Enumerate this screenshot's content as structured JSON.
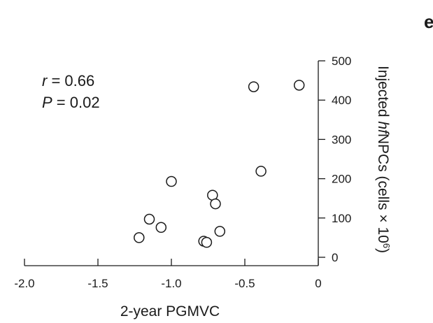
{
  "panel_letter": "e",
  "stats": {
    "r_label": "r",
    "r_value": " = 0.66",
    "p_label": "P",
    "p_value": " = 0.02"
  },
  "chart_data": {
    "type": "scatter",
    "xlabel": "2-year PGMVC",
    "ylabel_parts": [
      "Injected ",
      "hf",
      "NPCs (cells × 10",
      "6",
      ")"
    ],
    "xlim": [
      -2.0,
      0
    ],
    "ylim": [
      0,
      500
    ],
    "x_ticks": [
      -2.0,
      -1.5,
      -1.0,
      -0.5,
      0
    ],
    "x_tick_labels": [
      "-2.0",
      "-1.5",
      "-1.0",
      "-0.5",
      "0"
    ],
    "y_ticks": [
      0,
      100,
      200,
      300,
      400,
      500
    ],
    "y_tick_labels": [
      "0",
      "100",
      "200",
      "300",
      "400",
      "500"
    ],
    "grid": false,
    "points": [
      {
        "x": -1.22,
        "y": 50
      },
      {
        "x": -1.15,
        "y": 97
      },
      {
        "x": -1.07,
        "y": 76
      },
      {
        "x": -1.0,
        "y": 193
      },
      {
        "x": -0.78,
        "y": 41
      },
      {
        "x": -0.76,
        "y": 38
      },
      {
        "x": -0.72,
        "y": 158
      },
      {
        "x": -0.7,
        "y": 136
      },
      {
        "x": -0.67,
        "y": 66
      },
      {
        "x": -0.44,
        "y": 434
      },
      {
        "x": -0.39,
        "y": 219
      },
      {
        "x": -0.13,
        "y": 438
      }
    ]
  }
}
